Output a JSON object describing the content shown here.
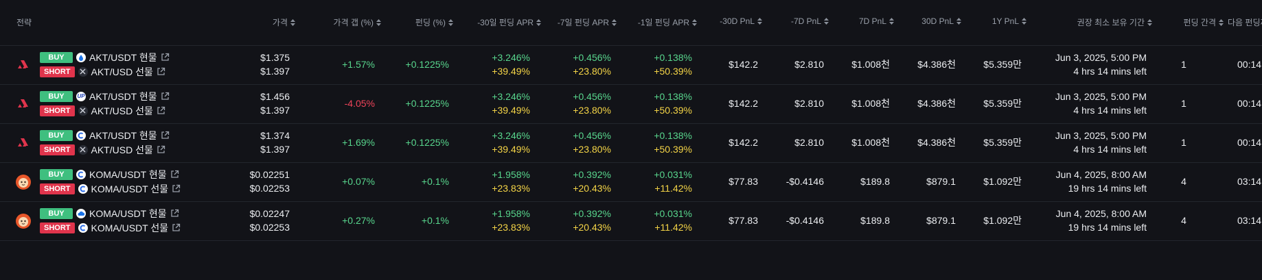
{
  "header": {
    "strategy": "전략",
    "price": "가격",
    "price_gap": "가격 갭 (%)",
    "funding": "펀딩 (%)",
    "apr30": "-30일 펀딩 APR",
    "apr7": "-7일 펀딩 APR",
    "apr1": "-1일 펀딩 APR",
    "pnl_m30": "-30D PnL",
    "pnl_m7": "-7D PnL",
    "pnl_7": "7D PnL",
    "pnl_30": "30D PnL",
    "pnl_1y": "1Y PnL",
    "hold": "권장 최소 보유 기간",
    "interval": "펀딩 간격",
    "next": "다음 펀딩까"
  },
  "colors": {
    "background": "#121318",
    "positive": "#58d68d",
    "highlight": "#f5d547",
    "negative": "#f0445a",
    "buy_badge": "#3fbf7f",
    "short_badge": "#e0344c"
  },
  "rows": [
    {
      "coin": "akt-icon",
      "buy_label": "BUY",
      "buy_pair": "AKT/USDT 현물",
      "buy_exchange": "drop-exchange-icon",
      "short_label": "SHORT",
      "short_pair": "AKT/USD 선물",
      "short_exchange": "x-exchange-icon",
      "price1": "$1.375",
      "price2": "$1.397",
      "gap": "+1.57%",
      "gap_sign": "pos",
      "funding": "+0.1225%",
      "apr30_a": "+3.246%",
      "apr30_b": "+39.49%",
      "apr7_a": "+0.456%",
      "apr7_b": "+23.80%",
      "apr1_a": "+0.138%",
      "apr1_b": "+50.39%",
      "pnl_m30": "$142.2",
      "pnl_m7": "$2.810",
      "pnl_7": "$1.008천",
      "pnl_30": "$4.386천",
      "pnl_1y": "$5.359만",
      "hold_date": "Jun 3, 2025, 5:00 PM",
      "hold_left": "4 hrs 14 mins left",
      "interval": "1",
      "next": "00:14"
    },
    {
      "coin": "akt-icon",
      "buy_label": "BUY",
      "buy_pair": "AKT/USDT 현물",
      "buy_exchange": "up-exchange-icon",
      "short_label": "SHORT",
      "short_pair": "AKT/USD 선물",
      "short_exchange": "x-exchange-icon",
      "price1": "$1.456",
      "price2": "$1.397",
      "gap": "-4.05%",
      "gap_sign": "neg",
      "funding": "+0.1225%",
      "apr30_a": "+3.246%",
      "apr30_b": "+39.49%",
      "apr7_a": "+0.456%",
      "apr7_b": "+23.80%",
      "apr1_a": "+0.138%",
      "apr1_b": "+50.39%",
      "pnl_m30": "$142.2",
      "pnl_m7": "$2.810",
      "pnl_7": "$1.008천",
      "pnl_30": "$4.386천",
      "pnl_1y": "$5.359만",
      "hold_date": "Jun 3, 2025, 5:00 PM",
      "hold_left": "4 hrs 14 mins left",
      "interval": "1",
      "next": "00:14"
    },
    {
      "coin": "akt-icon",
      "buy_label": "BUY",
      "buy_pair": "AKT/USDT 현물",
      "buy_exchange": "c-exchange-icon",
      "short_label": "SHORT",
      "short_pair": "AKT/USD 선물",
      "short_exchange": "x-exchange-icon",
      "price1": "$1.374",
      "price2": "$1.397",
      "gap": "+1.69%",
      "gap_sign": "pos",
      "funding": "+0.1225%",
      "apr30_a": "+3.246%",
      "apr30_b": "+39.49%",
      "apr7_a": "+0.456%",
      "apr7_b": "+23.80%",
      "apr1_a": "+0.138%",
      "apr1_b": "+50.39%",
      "pnl_m30": "$142.2",
      "pnl_m7": "$2.810",
      "pnl_7": "$1.008천",
      "pnl_30": "$4.386천",
      "pnl_1y": "$5.359만",
      "hold_date": "Jun 3, 2025, 5:00 PM",
      "hold_left": "4 hrs 14 mins left",
      "interval": "1",
      "next": "00:14"
    },
    {
      "coin": "koma-icon",
      "buy_label": "BUY",
      "buy_pair": "KOMA/USDT 현물",
      "buy_exchange": "c-exchange-icon",
      "short_label": "SHORT",
      "short_pair": "KOMA/USDT 선물",
      "short_exchange": "c-exchange-icon",
      "price1": "$0.02251",
      "price2": "$0.02253",
      "gap": "+0.07%",
      "gap_sign": "pos",
      "funding": "+0.1%",
      "apr30_a": "+1.958%",
      "apr30_b": "+23.83%",
      "apr7_a": "+0.392%",
      "apr7_b": "+20.43%",
      "apr1_a": "+0.031%",
      "apr1_b": "+11.42%",
      "pnl_m30": "$77.83",
      "pnl_m7": "-$0.4146",
      "pnl_7": "$189.8",
      "pnl_30": "$879.1",
      "pnl_1y": "$1.092만",
      "hold_date": "Jun 4, 2025, 8:00 AM",
      "hold_left": "19 hrs 14 mins left",
      "interval": "4",
      "next": "03:14"
    },
    {
      "coin": "koma-icon",
      "buy_label": "BUY",
      "buy_pair": "KOMA/USDT 현물",
      "buy_exchange": "cloud-exchange-icon",
      "short_label": "SHORT",
      "short_pair": "KOMA/USDT 선물",
      "short_exchange": "c-exchange-icon",
      "price1": "$0.02247",
      "price2": "$0.02253",
      "gap": "+0.27%",
      "gap_sign": "pos",
      "funding": "+0.1%",
      "apr30_a": "+1.958%",
      "apr30_b": "+23.83%",
      "apr7_a": "+0.392%",
      "apr7_b": "+20.43%",
      "apr1_a": "+0.031%",
      "apr1_b": "+11.42%",
      "pnl_m30": "$77.83",
      "pnl_m7": "-$0.4146",
      "pnl_7": "$189.8",
      "pnl_30": "$879.1",
      "pnl_1y": "$1.092만",
      "hold_date": "Jun 4, 2025, 8:00 AM",
      "hold_left": "19 hrs 14 mins left",
      "interval": "4",
      "next": "03:14"
    }
  ]
}
